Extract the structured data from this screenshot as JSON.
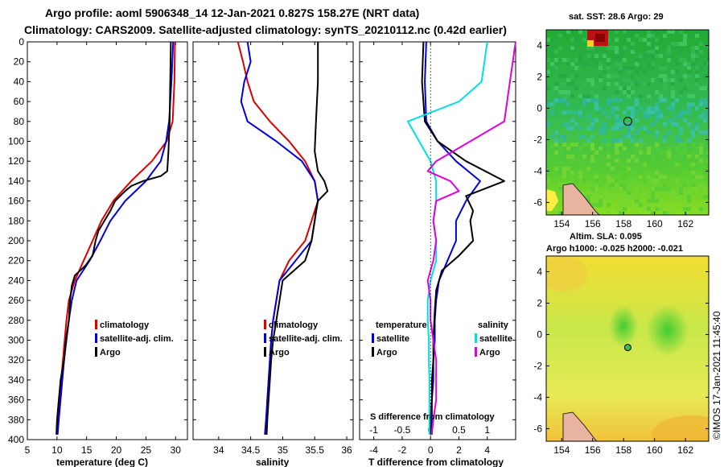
{
  "header": {
    "title_line1": "Argo profile: aoml 5906348_14 12-Jan-2021 0.827S 158.27E (NRT data)",
    "title_line2": "Climatology: CARS2009. Satellite-adjusted climatology: synTS_20210112.nc (0.42d earlier)"
  },
  "colors": {
    "climatology": "#dd0000",
    "satellite": "#0000dd",
    "argo": "#000000",
    "salinity_satellite": "#00e0e0",
    "salinity_argo": "#e000e0"
  },
  "chart_data": [
    {
      "type": "line",
      "name": "temperature-profile",
      "xlabel": "temperature (deg C)",
      "ylabel": "depth",
      "xlim": [
        5,
        32
      ],
      "ylim": [
        400,
        0
      ],
      "xticks": [
        5,
        10,
        15,
        20,
        25,
        30
      ],
      "yticks": [
        0,
        20,
        40,
        60,
        80,
        100,
        120,
        140,
        160,
        180,
        200,
        220,
        240,
        260,
        280,
        300,
        320,
        340,
        360,
        380,
        400
      ],
      "legend": [
        "climatology",
        "satellite-adj. clim.",
        "Argo"
      ],
      "series": [
        {
          "name": "climatology",
          "color": "#dd0000",
          "points": [
            [
              29.9,
              0
            ],
            [
              29.8,
              40
            ],
            [
              29.5,
              80
            ],
            [
              28.5,
              100
            ],
            [
              26,
              120
            ],
            [
              22.5,
              140
            ],
            [
              19.5,
              160
            ],
            [
              17.5,
              180
            ],
            [
              16,
              200
            ],
            [
              14.5,
              220
            ],
            [
              13,
              240
            ],
            [
              12,
              260
            ],
            [
              11.6,
              280
            ],
            [
              11.3,
              300
            ],
            [
              11,
              320
            ],
            [
              10.7,
              340
            ],
            [
              10.4,
              360
            ],
            [
              10.2,
              380
            ],
            [
              10,
              395
            ]
          ]
        },
        {
          "name": "satellite-adj. clim.",
          "color": "#0000dd",
          "points": [
            [
              29.6,
              0
            ],
            [
              29.3,
              40
            ],
            [
              28.9,
              80
            ],
            [
              28.4,
              100
            ],
            [
              27.5,
              120
            ],
            [
              25,
              140
            ],
            [
              21.5,
              160
            ],
            [
              19,
              180
            ],
            [
              17.3,
              200
            ],
            [
              15.5,
              220
            ],
            [
              13.3,
              240
            ],
            [
              12.5,
              260
            ],
            [
              12,
              280
            ],
            [
              11.6,
              300
            ],
            [
              11.2,
              320
            ],
            [
              10.9,
              340
            ],
            [
              10.6,
              360
            ],
            [
              10.3,
              380
            ],
            [
              10.1,
              395
            ]
          ]
        },
        {
          "name": "Argo",
          "color": "#000000",
          "points": [
            [
              29.2,
              0
            ],
            [
              29.1,
              40
            ],
            [
              29,
              80
            ],
            [
              28.8,
              110
            ],
            [
              28.6,
              130
            ],
            [
              27.5,
              135
            ],
            [
              24.5,
              140
            ],
            [
              22.5,
              145
            ],
            [
              21.5,
              150
            ],
            [
              19.8,
              160
            ],
            [
              19,
              170
            ],
            [
              18,
              180
            ],
            [
              17,
              190
            ],
            [
              16.5,
              200
            ],
            [
              16,
              215
            ],
            [
              14.8,
              225
            ],
            [
              13,
              235
            ],
            [
              12.5,
              245
            ],
            [
              12.2,
              260
            ],
            [
              12,
              280
            ],
            [
              11.5,
              300
            ],
            [
              11.2,
              320
            ],
            [
              10.6,
              340
            ],
            [
              10.3,
              360
            ],
            [
              10,
              380
            ],
            [
              9.9,
              395
            ]
          ]
        }
      ]
    },
    {
      "type": "line",
      "name": "salinity-profile",
      "xlabel": "salinity",
      "ylabel": "depth",
      "xlim": [
        33.6,
        36.1
      ],
      "ylim": [
        400,
        0
      ],
      "xticks": [
        34,
        34.5,
        35,
        35.5,
        36
      ],
      "xticklabels": [
        "34",
        "34.5",
        "35",
        "35.5",
        "36"
      ],
      "legend": [
        "climatology",
        "satellite-adj. clim.",
        "Argo"
      ],
      "series": [
        {
          "name": "climatology",
          "color": "#dd0000",
          "points": [
            [
              34.3,
              0
            ],
            [
              34.38,
              20
            ],
            [
              34.45,
              40
            ],
            [
              34.55,
              60
            ],
            [
              34.8,
              80
            ],
            [
              35.1,
              100
            ],
            [
              35.35,
              120
            ],
            [
              35.5,
              140
            ],
            [
              35.55,
              160
            ],
            [
              35.45,
              180
            ],
            [
              35.35,
              200
            ],
            [
              35.1,
              220
            ],
            [
              34.95,
              240
            ],
            [
              34.9,
              260
            ],
            [
              34.85,
              280
            ],
            [
              34.82,
              300
            ],
            [
              34.8,
              320
            ],
            [
              34.78,
              340
            ],
            [
              34.76,
              360
            ],
            [
              34.75,
              380
            ],
            [
              34.74,
              395
            ]
          ]
        },
        {
          "name": "satellite-adj. clim.",
          "color": "#0000dd",
          "points": [
            [
              34.45,
              0
            ],
            [
              34.5,
              20
            ],
            [
              34.4,
              40
            ],
            [
              34.35,
              60
            ],
            [
              34.45,
              80
            ],
            [
              34.9,
              100
            ],
            [
              35.3,
              120
            ],
            [
              35.5,
              140
            ],
            [
              35.55,
              160
            ],
            [
              35.5,
              180
            ],
            [
              35.45,
              200
            ],
            [
              35.2,
              220
            ],
            [
              34.95,
              240
            ],
            [
              34.9,
              260
            ],
            [
              34.85,
              280
            ],
            [
              34.82,
              300
            ],
            [
              34.8,
              320
            ],
            [
              34.78,
              340
            ],
            [
              34.76,
              360
            ],
            [
              34.74,
              380
            ],
            [
              34.72,
              395
            ]
          ]
        },
        {
          "name": "Argo",
          "color": "#000000",
          "points": [
            [
              35.55,
              0
            ],
            [
              35.55,
              40
            ],
            [
              35.52,
              80
            ],
            [
              35.5,
              110
            ],
            [
              35.55,
              130
            ],
            [
              35.65,
              140
            ],
            [
              35.7,
              150
            ],
            [
              35.55,
              160
            ],
            [
              35.52,
              170
            ],
            [
              35.5,
              180
            ],
            [
              35.45,
              200
            ],
            [
              35.35,
              220
            ],
            [
              35,
              240
            ],
            [
              34.95,
              260
            ],
            [
              34.9,
              280
            ],
            [
              34.85,
              300
            ],
            [
              34.82,
              320
            ],
            [
              34.8,
              340
            ],
            [
              34.78,
              360
            ],
            [
              34.76,
              380
            ],
            [
              34.75,
              395
            ]
          ]
        }
      ]
    },
    {
      "type": "line",
      "name": "difference-profile",
      "xlabel": "T difference from climatology",
      "x2label": "S difference from climatology",
      "xlim": [
        -5,
        6
      ],
      "x2lim": [
        -1.25,
        1.5
      ],
      "ylim": [
        400,
        0
      ],
      "xticks": [
        -4,
        -2,
        0,
        2,
        4
      ],
      "x2ticks": [
        -1,
        -0.5,
        0,
        0.5,
        1
      ],
      "x2ticklabels": [
        "-1",
        "-0.5",
        "0",
        "0.5",
        "1"
      ],
      "legend_temperature_title": "temperature",
      "legend_salinity_title": "salinity",
      "legend_temperature": [
        "satellite",
        "Argo"
      ],
      "legend_salinity": [
        "satellite",
        "Argo"
      ],
      "series": [
        {
          "name": "temperature satellite",
          "color": "#0000dd",
          "points": [
            [
              -0.3,
              0
            ],
            [
              -0.4,
              40
            ],
            [
              -0.3,
              80
            ],
            [
              0.5,
              100
            ],
            [
              1.8,
              120
            ],
            [
              3.5,
              140
            ],
            [
              2.5,
              160
            ],
            [
              1.8,
              180
            ],
            [
              1.8,
              200
            ],
            [
              1.2,
              220
            ],
            [
              0.6,
              240
            ],
            [
              0.4,
              260
            ],
            [
              0.3,
              280
            ],
            [
              0.3,
              300
            ],
            [
              0.2,
              320
            ],
            [
              0.2,
              340
            ],
            [
              0.1,
              360
            ],
            [
              0.1,
              380
            ],
            [
              0.1,
              395
            ]
          ]
        },
        {
          "name": "temperature Argo",
          "color": "#000000",
          "points": [
            [
              -0.5,
              0
            ],
            [
              -0.6,
              40
            ],
            [
              -0.4,
              80
            ],
            [
              0.5,
              100
            ],
            [
              2.5,
              120
            ],
            [
              5.2,
              140
            ],
            [
              2.5,
              155
            ],
            [
              3,
              170
            ],
            [
              2.8,
              180
            ],
            [
              3,
              200
            ],
            [
              2,
              215
            ],
            [
              0.8,
              230
            ],
            [
              0.4,
              250
            ],
            [
              0.3,
              270
            ],
            [
              0.2,
              300
            ],
            [
              0.2,
              320
            ],
            [
              0.1,
              340
            ],
            [
              0.1,
              360
            ],
            [
              0,
              380
            ],
            [
              0,
              395
            ]
          ]
        },
        {
          "name": "salinity satellite",
          "color": "#00e0e0",
          "points": [
            [
              1,
              0
            ],
            [
              0.9,
              40
            ],
            [
              0.5,
              60
            ],
            [
              -0.4,
              80
            ],
            [
              -0.2,
              100
            ],
            [
              0,
              120
            ],
            [
              0.1,
              140
            ],
            [
              0.1,
              160
            ],
            [
              0.05,
              180
            ],
            [
              0.1,
              200
            ],
            [
              0.1,
              220
            ],
            [
              0,
              240
            ],
            [
              -0.05,
              260
            ],
            [
              -0.05,
              280
            ],
            [
              -0.03,
              300
            ],
            [
              -0.03,
              320
            ],
            [
              -0.02,
              340
            ],
            [
              -0.02,
              360
            ],
            [
              -0.02,
              380
            ],
            [
              -0.02,
              395
            ]
          ]
        },
        {
          "name": "salinity Argo",
          "color": "#e000e0",
          "points": [
            [
              1.5,
              0
            ],
            [
              1.4,
              40
            ],
            [
              1.3,
              80
            ],
            [
              0.7,
              100
            ],
            [
              0.1,
              120
            ],
            [
              -0.05,
              130
            ],
            [
              0.35,
              140
            ],
            [
              0.5,
              150
            ],
            [
              0.1,
              160
            ],
            [
              0.05,
              180
            ],
            [
              0.1,
              200
            ],
            [
              0.05,
              220
            ],
            [
              -0.05,
              240
            ],
            [
              0,
              260
            ],
            [
              0,
              280
            ],
            [
              0.05,
              300
            ],
            [
              0.1,
              320
            ],
            [
              0.1,
              340
            ],
            [
              0.1,
              360
            ],
            [
              0.05,
              380
            ],
            [
              0.02,
              395
            ]
          ]
        }
      ]
    },
    {
      "type": "heatmap",
      "name": "sst-map",
      "title": "sat. SST: 28.6 Argo: 29",
      "xticks": [
        154,
        156,
        158,
        160,
        162
      ],
      "yticks": [
        4,
        2,
        0,
        -2,
        -4,
        -6
      ],
      "xlim": [
        153,
        163.5
      ],
      "ylim": [
        -6.8,
        5
      ],
      "marker": [
        158.27,
        -0.827
      ]
    },
    {
      "type": "heatmap",
      "name": "sla-map",
      "title_line1": "Altim. SLA: 0.095",
      "title_line2": "Argo h1000: -0.025 h2000: -0.021",
      "xticks": [
        154,
        156,
        158,
        160,
        162
      ],
      "yticks": [
        4,
        2,
        0,
        -2,
        -4,
        -6
      ],
      "xlim": [
        153,
        163.5
      ],
      "ylim": [
        -6.8,
        5
      ],
      "marker": [
        158.27,
        -0.827
      ]
    }
  ],
  "credit": "©IMOS 17-Jan-2021 11:45:40"
}
